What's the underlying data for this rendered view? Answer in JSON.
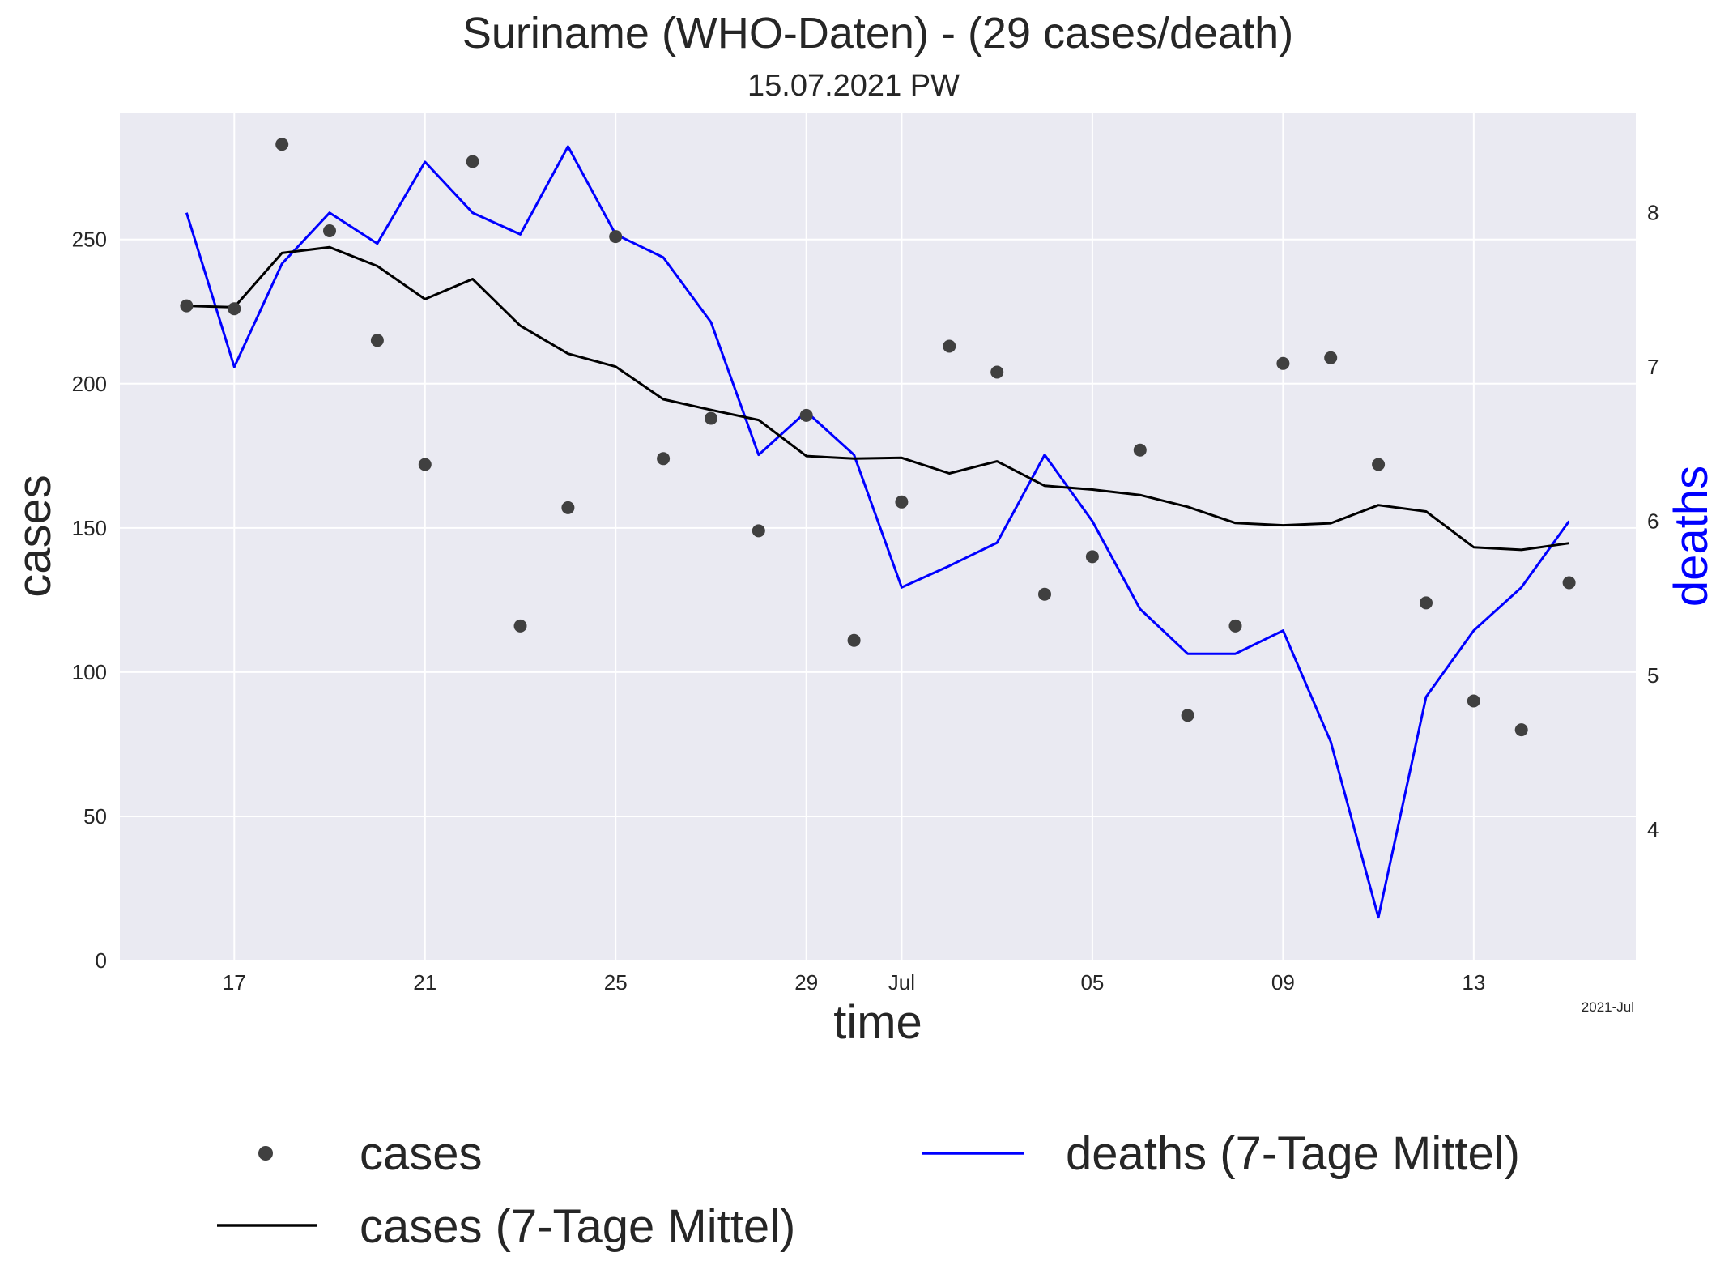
{
  "chart_data": {
    "type": "line",
    "title": "Suriname (WHO-Daten) - (29 cases/death)",
    "subtitle": "15.07.2021 PW",
    "xlabel": "time",
    "ylabel": "cases",
    "y2label": "deaths",
    "x_ticks": [
      "17",
      "21",
      "25",
      "29",
      "Jul",
      "05",
      "09",
      "13"
    ],
    "x_offset_label": "2021-Jul",
    "y_ticks": [
      "0",
      "50",
      "100",
      "150",
      "200",
      "250"
    ],
    "y2_ticks": [
      "4",
      "5",
      "6",
      "7",
      "8"
    ],
    "ylim": [
      0,
      294
    ],
    "y2lim": [
      3.15,
      8.65
    ],
    "grid": true,
    "legend_position": "below",
    "x": [
      "2021-06-16",
      "2021-06-17",
      "2021-06-18",
      "2021-06-19",
      "2021-06-20",
      "2021-06-21",
      "2021-06-22",
      "2021-06-23",
      "2021-06-24",
      "2021-06-25",
      "2021-06-26",
      "2021-06-27",
      "2021-06-28",
      "2021-06-29",
      "2021-06-30",
      "2021-07-01",
      "2021-07-02",
      "2021-07-03",
      "2021-07-04",
      "2021-07-05",
      "2021-07-06",
      "2021-07-07",
      "2021-07-08",
      "2021-07-09",
      "2021-07-10",
      "2021-07-11",
      "2021-07-12",
      "2021-07-13",
      "2021-07-14",
      "2021-07-15"
    ],
    "series": [
      {
        "name": "cases",
        "kind": "scatter",
        "color": "#404040",
        "axis": "left",
        "values": [
          227,
          226,
          283,
          253,
          215,
          172,
          277,
          116,
          157,
          251,
          174,
          188,
          149,
          189,
          111,
          159,
          213,
          204,
          127,
          140,
          177,
          85,
          116,
          207,
          209,
          172,
          124,
          90,
          80,
          131
        ]
      },
      {
        "name": "cases (7-Tage Mittel)",
        "kind": "line",
        "color": "#000000",
        "axis": "left",
        "values": [
          227,
          226.5,
          245.3,
          247.3,
          240.8,
          229.3,
          236.3,
          220.1,
          210.4,
          205.9,
          194.6,
          190.9,
          187.4,
          174.9,
          174,
          174.3,
          168.9,
          173.1,
          164.6,
          163.3,
          161.4,
          157.3,
          151.7,
          150.9,
          151.6,
          157.9,
          155.7,
          143.3,
          142.4,
          144.7
        ]
      },
      {
        "name": "deaths (7-Tage Mittel)",
        "kind": "line",
        "color": "#0000ff",
        "axis": "right",
        "values": [
          8.0,
          7.0,
          7.67,
          8.0,
          7.8,
          8.33,
          8.0,
          7.86,
          8.43,
          7.86,
          7.71,
          7.29,
          6.43,
          6.71,
          6.43,
          5.57,
          5.71,
          5.86,
          6.43,
          6.0,
          5.43,
          5.14,
          5.14,
          5.29,
          4.57,
          3.43,
          4.86,
          5.29,
          5.57,
          6.0
        ]
      }
    ]
  },
  "colors": {
    "plot_background": "#eaeaf2",
    "grid": "#ffffff",
    "deaths_axis_label": "#0000ff"
  }
}
